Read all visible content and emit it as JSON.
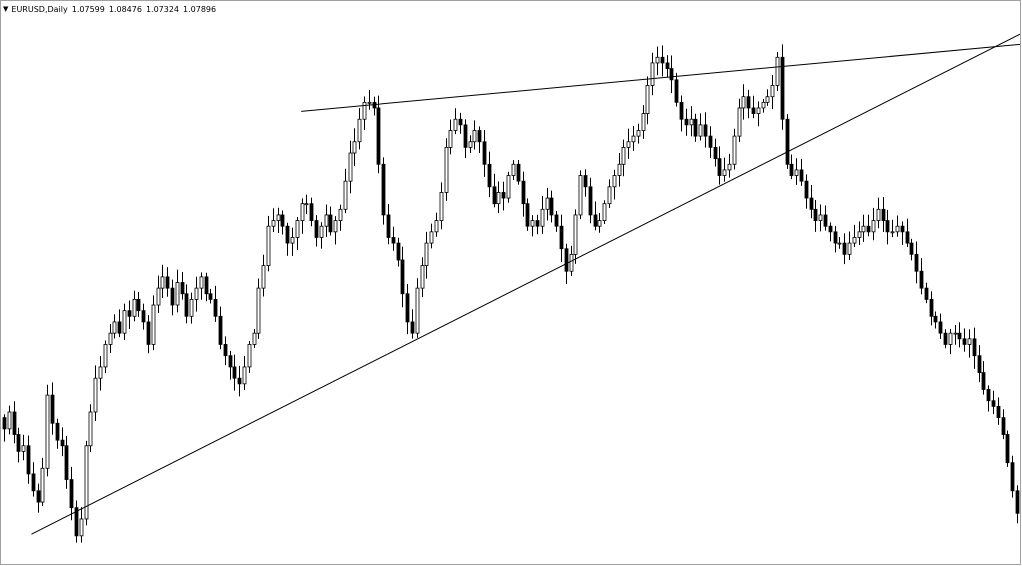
{
  "window": {
    "symbol": "EURUSD",
    "timeframe": "Daily",
    "title": "EURUSD,Daily",
    "ohlc": [
      "1.07599",
      "1.08476",
      "1.07324",
      "1.07896"
    ],
    "dropdown_icon": "triangle-down-icon"
  },
  "colors": {
    "background": "#ffffff",
    "candle": "#000000",
    "line": "#000000"
  },
  "chart_data": {
    "type": "candlestick",
    "title": "",
    "xlabel": "",
    "ylabel": "",
    "grid": false,
    "legend": "none",
    "ylim": [
      1.025,
      1.125
    ],
    "path_closes": [
      1.049,
      1.052,
      1.048,
      1.045,
      1.046,
      1.041,
      1.038,
      1.036,
      1.042,
      1.055,
      1.05,
      1.047,
      1.046,
      1.04,
      1.035,
      1.03,
      1.033,
      1.046,
      1.052,
      1.058,
      1.06,
      1.064,
      1.066,
      1.068,
      1.066,
      1.07,
      1.069,
      1.072,
      1.07,
      1.068,
      1.064,
      1.071,
      1.074,
      1.076,
      1.074,
      1.071,
      1.075,
      1.073,
      1.069,
      1.072,
      1.074,
      1.076,
      1.073,
      1.072,
      1.069,
      1.064,
      1.062,
      1.06,
      1.058,
      1.057,
      1.06,
      1.064,
      1.066,
      1.074,
      1.078,
      1.085,
      1.086,
      1.087,
      1.085,
      1.082,
      1.083,
      1.086,
      1.089,
      1.089,
      1.086,
      1.083,
      1.085,
      1.087,
      1.084,
      1.086,
      1.088,
      1.093,
      1.098,
      1.1,
      1.104,
      1.107,
      1.107,
      1.106,
      1.096,
      1.087,
      1.083,
      1.082,
      1.079,
      1.073,
      1.068,
      1.066,
      1.074,
      1.078,
      1.082,
      1.084,
      1.086,
      1.091,
      1.099,
      1.102,
      1.104,
      1.103,
      1.099,
      1.1,
      1.102,
      1.1,
      1.096,
      1.092,
      1.089,
      1.091,
      1.09,
      1.094,
      1.096,
      1.093,
      1.089,
      1.085,
      1.086,
      1.085,
      1.088,
      1.09,
      1.087,
      1.085,
      1.081,
      1.077,
      1.08,
      1.087,
      1.094,
      1.092,
      1.087,
      1.085,
      1.086,
      1.089,
      1.092,
      1.094,
      1.096,
      1.099,
      1.1,
      1.101,
      1.102,
      1.105,
      1.11,
      1.114,
      1.115,
      1.114,
      1.113,
      1.111,
      1.107,
      1.104,
      1.103,
      1.104,
      1.101,
      1.103,
      1.101,
      1.099,
      1.097,
      1.094,
      1.095,
      1.096,
      1.101,
      1.106,
      1.108,
      1.106,
      1.105,
      1.106,
      1.107,
      1.108,
      1.11,
      1.115,
      1.104,
      1.096,
      1.094,
      1.095,
      1.093,
      1.09,
      1.088,
      1.086,
      1.087,
      1.085,
      1.084,
      1.082,
      1.082,
      1.08,
      1.082,
      1.083,
      1.084,
      1.085,
      1.084,
      1.086,
      1.088,
      1.086,
      1.084,
      1.084,
      1.085,
      1.084,
      1.082,
      1.08,
      1.077,
      1.074,
      1.072,
      1.069,
      1.068,
      1.066,
      1.064,
      1.066,
      1.066,
      1.065,
      1.064,
      1.065,
      1.062,
      1.059,
      1.056,
      1.054,
      1.053,
      1.051,
      1.048,
      1.043,
      1.038,
      1.034
    ],
    "trendlines": [
      {
        "name": "resistance",
        "start": {
          "bar": 0.2946,
          "price": 1.1054
        },
        "end": {
          "bar": 1.0,
          "price": 1.1173
        }
      },
      {
        "name": "support",
        "start": {
          "bar": 0.0299,
          "price": 1.0303
        },
        "end": {
          "bar": 1.0,
          "price": 1.1191
        }
      }
    ]
  }
}
